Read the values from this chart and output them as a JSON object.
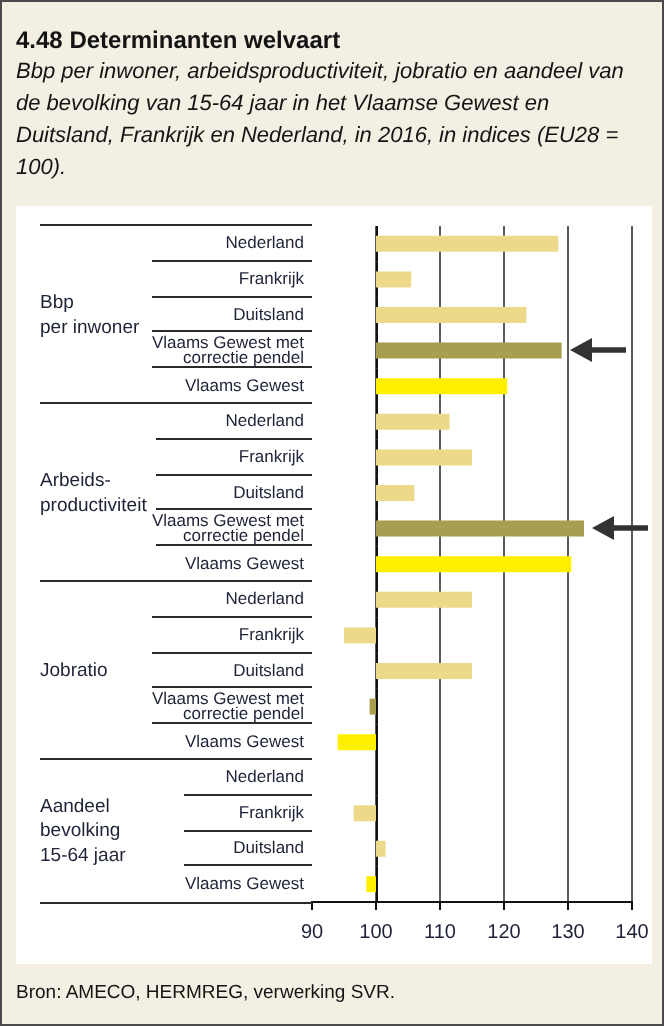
{
  "chart_data": [
    {
      "type": "bar",
      "orientation": "horizontal",
      "title": "4.48 Determinanten welvaart",
      "subtitle": "Bbp per inwoner, arbeidsproductiviteit, jobratio en aandeel van de bevolking van 15-64 jaar in het Vlaamse Gewest en Duitsland, Frankrijk en Nederland, in 2016, in indices (EU28 = 100).",
      "ylabel": "Bbp\nper inwoner",
      "categories": [
        "Nederland",
        "Frankrijk",
        "Duitsland",
        "Vlaams Gewest met correctie pendel",
        "Vlaams Gewest"
      ],
      "values": [
        28.5,
        5.5,
        23.5,
        29,
        20.5
      ],
      "base": [
        100,
        100,
        100,
        100,
        100
      ],
      "colors": [
        "#ecd98a",
        "#ecd98a",
        "#ecd98a",
        "#a99d50",
        "#fff000"
      ],
      "xlim": [
        90,
        140
      ],
      "xticks": [
        90,
        100,
        110,
        120,
        130,
        140
      ],
      "grid": "x",
      "tick_labels": "y"
    },
    {
      "type": "bar",
      "orientation": "horizontal",
      "ylabel": "Arbeids-\nproductiviteit",
      "categories": [
        "Nederland",
        "Frankrijk",
        "Duitsland",
        "Vlaams Gewest met correctie pendel",
        "Vlaams Gewest"
      ],
      "values": [
        11.5,
        15,
        6,
        32.5,
        30.5
      ],
      "base": [
        100,
        100,
        100,
        100,
        100
      ],
      "colors": [
        "#ecd98a",
        "#ecd98a",
        "#ecd98a",
        "#a99d50",
        "#fff000"
      ],
      "xlim": [
        90,
        140
      ],
      "xticks": [
        90,
        100,
        110,
        120,
        130,
        140
      ],
      "grid": "x",
      "tick_labels": "y"
    },
    {
      "type": "bar",
      "orientation": "horizontal",
      "ylabel": "Jobratio",
      "categories": [
        "Nederland",
        "Frankrijk",
        "Duitsland",
        "Vlaams Gewest met correctie pendel",
        "Vlaams Gewest"
      ],
      "values": [
        15,
        -5,
        15,
        -1,
        -6
      ],
      "base": [
        100,
        100,
        100,
        100,
        100
      ],
      "colors": [
        "#ecd98a",
        "#ecd98a",
        "#ecd98a",
        "#a99d50",
        "#fff000"
      ],
      "xlim": [
        90,
        140
      ],
      "xticks": [
        90,
        100,
        110,
        120,
        130,
        140
      ],
      "grid": "x",
      "tick_labels": "y"
    },
    {
      "type": "bar",
      "orientation": "horizontal",
      "ylabel": "Aandeel\nbevolking\n15-64 jaar",
      "categories": [
        "Nederland",
        "Frankrijk",
        "Duitsland",
        "Vlaams Gewest"
      ],
      "values": [
        null,
        -3.5,
        1.5,
        -1.5
      ],
      "base": [
        null,
        100,
        100,
        100
      ],
      "colors": [
        "#ecd98a",
        "#ecd98a",
        "#ecd98a",
        "#fff000"
      ],
      "xlim": [
        90,
        140
      ],
      "xticks": [
        90,
        100,
        110,
        120,
        130,
        140
      ],
      "grid": "x",
      "annotations": [
        "Bron: AMECO, HERMREG, verwerking SVR."
      ]
    }
  ]
}
